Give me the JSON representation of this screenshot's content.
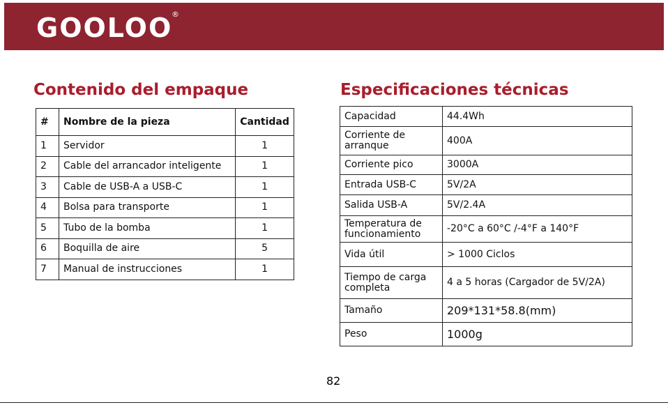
{
  "header": {
    "logo": "GOOLOO",
    "registered": "®"
  },
  "package": {
    "title": "Contenido del empaque",
    "columns": [
      "#",
      "Nombre de la pieza",
      "Cantidad"
    ],
    "rows": [
      [
        "1",
        "Servidor",
        "1"
      ],
      [
        "2",
        "Cable del arrancador inteligente",
        "1"
      ],
      [
        "3",
        "Cable de USB-A a USB-C",
        "1"
      ],
      [
        "4",
        "Bolsa para transporte",
        "1"
      ],
      [
        "5",
        "Tubo de la bomba",
        "1"
      ],
      [
        "6",
        "Boquilla de aire",
        "5"
      ],
      [
        "7",
        "Manual de instrucciones",
        "1"
      ]
    ]
  },
  "specs": {
    "title": "Especificaciones técnicas",
    "rows": [
      [
        "Capacidad",
        "44.4Wh"
      ],
      [
        "Corriente de arranque",
        "400A"
      ],
      [
        "Corriente pico",
        "3000A"
      ],
      [
        "Entrada USB-C",
        "5V/2A"
      ],
      [
        "Salida USB-A",
        "5V/2.4A"
      ],
      [
        "Temperatura de funcionamiento",
        "-20°C a 60°C /-4°F a 140°F"
      ],
      [
        "Vida útil",
        "> 1000 Ciclos"
      ],
      [
        "Tiempo de carga completa",
        "4 a 5 horas (Cargador de 5V/2A)"
      ],
      [
        "Tamaño",
        "209*131*58.8(mm)"
      ],
      [
        "Peso",
        "1000g"
      ]
    ]
  },
  "footer": {
    "page_number": "82"
  }
}
